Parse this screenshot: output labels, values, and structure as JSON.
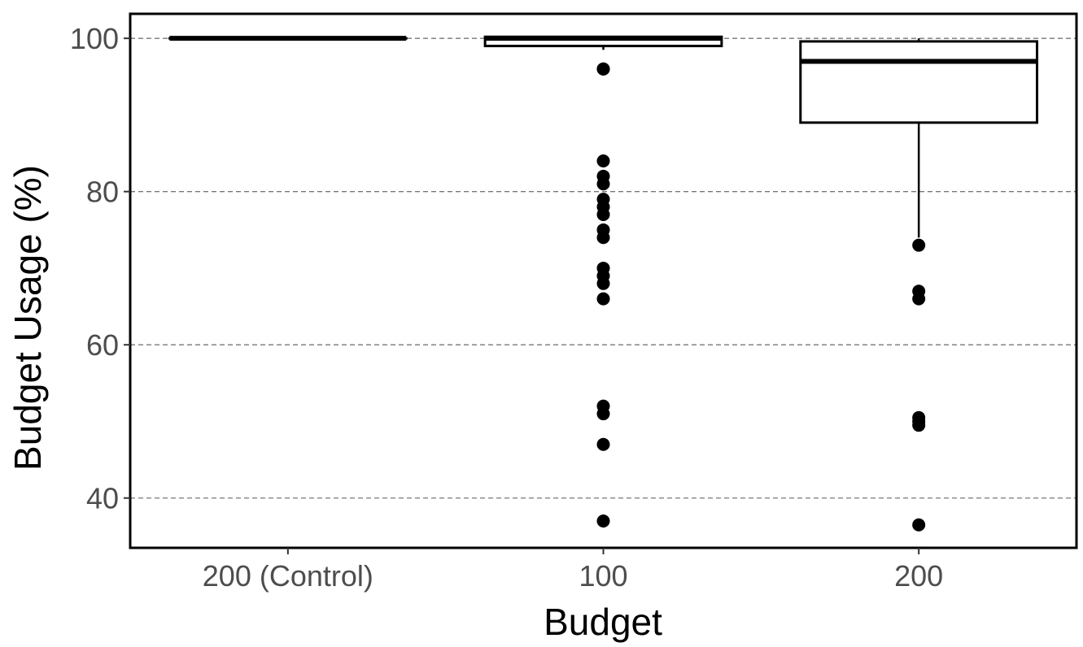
{
  "chart_data": {
    "type": "box",
    "xlabel": "Budget",
    "ylabel": "Budget Usage (%)",
    "categories": [
      "200 (Control)",
      "100",
      "200"
    ],
    "ylim": [
      33.5,
      103.2
    ],
    "yticks": [
      40,
      60,
      80,
      100
    ],
    "grid": "horizontal dashed",
    "legend": "none",
    "boxes": [
      {
        "category": "200 (Control)",
        "whisker_low": 100,
        "q1": 100,
        "median": 100,
        "q3": 100,
        "whisker_high": 100,
        "outliers": []
      },
      {
        "category": "100",
        "whisker_low": 98.5,
        "q1": 99,
        "median": 100,
        "q3": 100.2,
        "whisker_high": 100.2,
        "outliers": [
          96,
          96,
          84,
          82,
          81,
          79,
          78,
          77,
          75,
          74,
          70,
          69,
          68,
          66,
          52,
          51,
          47,
          37
        ]
      },
      {
        "category": "200",
        "whisker_low": 74,
        "q1": 89,
        "median": 97,
        "q3": 99.6,
        "whisker_high": 100,
        "outliers": [
          73,
          67,
          66,
          50.5,
          50,
          49.5,
          36.5
        ]
      }
    ]
  }
}
